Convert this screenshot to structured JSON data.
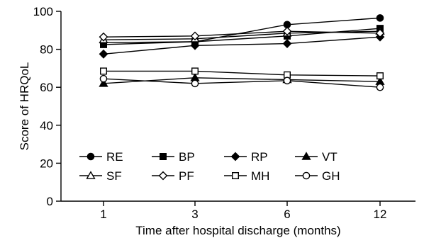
{
  "chart_data": {
    "type": "line",
    "categories": [
      "1",
      "3",
      "6",
      "12"
    ],
    "xlabel": "Time after hospital discharge (months)",
    "ylabel": "Score of HRQoL",
    "ylim": [
      0,
      100
    ],
    "yticks": [
      0,
      20,
      40,
      60,
      80,
      100
    ],
    "legend_placement": "bottom-center",
    "series": [
      {
        "name": "RE",
        "marker": "circle-filled",
        "values": [
          83.5,
          84,
          93,
          96.5
        ]
      },
      {
        "name": "BP",
        "marker": "square-filled",
        "values": [
          82.5,
          84,
          87,
          91
        ]
      },
      {
        "name": "RP",
        "marker": "diamond-filled",
        "values": [
          77.5,
          82,
          83,
          86.5
        ]
      },
      {
        "name": "VT",
        "marker": "triangle-filled",
        "values": [
          62,
          65,
          64,
          63
        ]
      },
      {
        "name": "SF",
        "marker": "triangle-open",
        "values": [
          85,
          85.5,
          88.5,
          89.5
        ]
      },
      {
        "name": "PF",
        "marker": "diamond-open",
        "values": [
          86.5,
          87,
          89.5,
          88.5
        ]
      },
      {
        "name": "MH",
        "marker": "square-open",
        "values": [
          68.5,
          68.5,
          66.5,
          66
        ]
      },
      {
        "name": "GH",
        "marker": "circle-open",
        "values": [
          64.5,
          62,
          63.5,
          60
        ]
      }
    ]
  }
}
